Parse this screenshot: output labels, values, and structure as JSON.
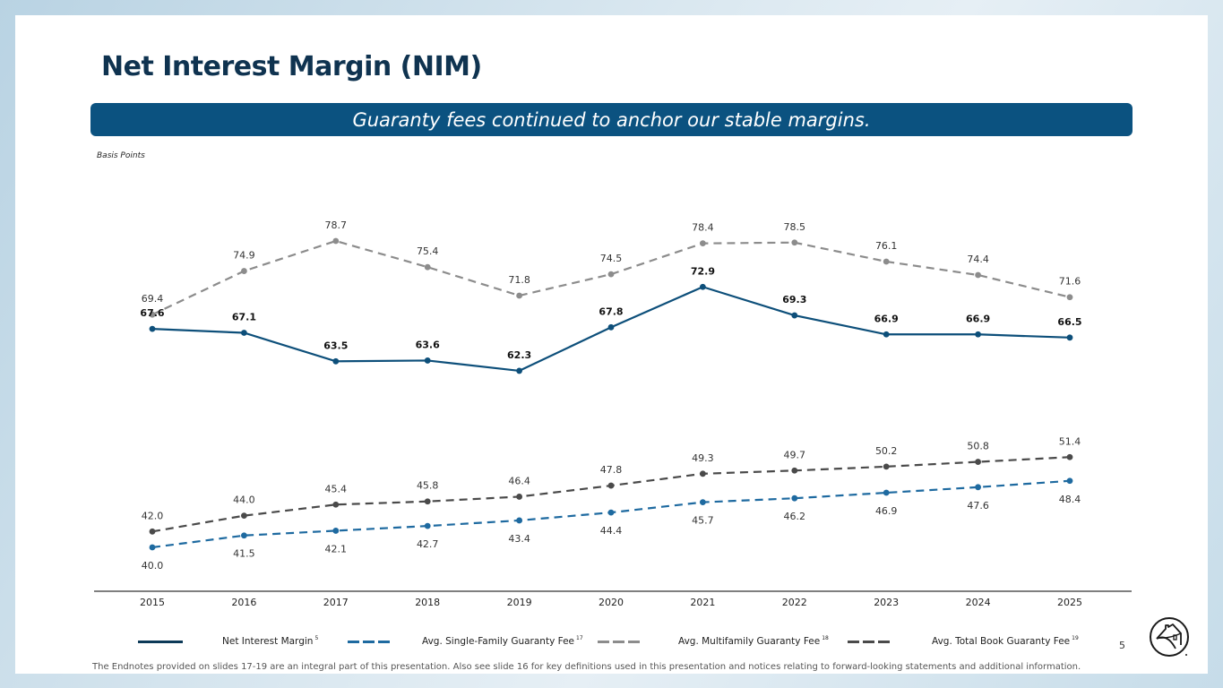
{
  "slide": {
    "title": "Net Interest Margin (NIM)",
    "banner": "Guaranty fees continued to anchor our stable margins.",
    "units_label": "Basis Points",
    "page_number": "5",
    "footer": "The Endnotes provided on slides 17-19 are an integral part of this presentation. Also see slide 16 for key definitions used in this presentation and notices relating to forward-looking statements and additional information.",
    "logo_icon": "house-circle-logo-icon"
  },
  "legend": [
    {
      "label": "Net Interest Margin",
      "note": "5",
      "color": "#0d3a58",
      "style": "solid"
    },
    {
      "label": "Avg. Single-Family Guaranty Fee",
      "note": "17",
      "color": "#1e6aa0",
      "style": "dashed"
    },
    {
      "label": "Avg. Multifamily Guaranty Fee",
      "note": "18",
      "color": "#8c8c8c",
      "style": "dashed"
    },
    {
      "label": "Avg. Total Book Guaranty Fee",
      "note": "19",
      "color": "#4a4a4a",
      "style": "dashed"
    }
  ],
  "chart_data": {
    "type": "line",
    "title": "Net Interest Margin (NIM)",
    "ylabel": "Basis Points",
    "xlabel": "",
    "categories": [
      "2015",
      "2016",
      "2017",
      "2018",
      "2019",
      "2020",
      "2021",
      "2022",
      "2023",
      "2024",
      "2025"
    ],
    "ylim": [
      35,
      82
    ],
    "grid": false,
    "legend_position": "bottom",
    "series": [
      {
        "name": "Avg. Multifamily Guaranty Fee",
        "color": "#8c8c8c",
        "dashed": true,
        "label_pos": "above",
        "bold": false,
        "values": [
          69.4,
          74.9,
          78.7,
          75.4,
          71.8,
          74.5,
          78.4,
          78.5,
          76.1,
          74.4,
          71.6
        ]
      },
      {
        "name": "Net Interest Margin",
        "color": "#0d4f7a",
        "dashed": false,
        "label_pos": "above",
        "bold": true,
        "values": [
          67.6,
          67.1,
          63.5,
          63.6,
          62.3,
          67.8,
          72.9,
          69.3,
          66.9,
          66.9,
          66.5
        ]
      },
      {
        "name": "Avg. Total Book Guaranty Fee",
        "color": "#4a4a4a",
        "dashed": true,
        "label_pos": "above",
        "bold": false,
        "values": [
          42.0,
          44.0,
          45.4,
          45.8,
          46.4,
          47.8,
          49.3,
          49.7,
          50.2,
          50.8,
          51.4
        ]
      },
      {
        "name": "Avg. Single-Family Guaranty Fee",
        "color": "#1e6aa0",
        "dashed": true,
        "label_pos": "below",
        "bold": false,
        "values": [
          40.0,
          41.5,
          42.1,
          42.7,
          43.4,
          44.4,
          45.7,
          46.2,
          46.9,
          47.6,
          48.4
        ]
      }
    ]
  }
}
